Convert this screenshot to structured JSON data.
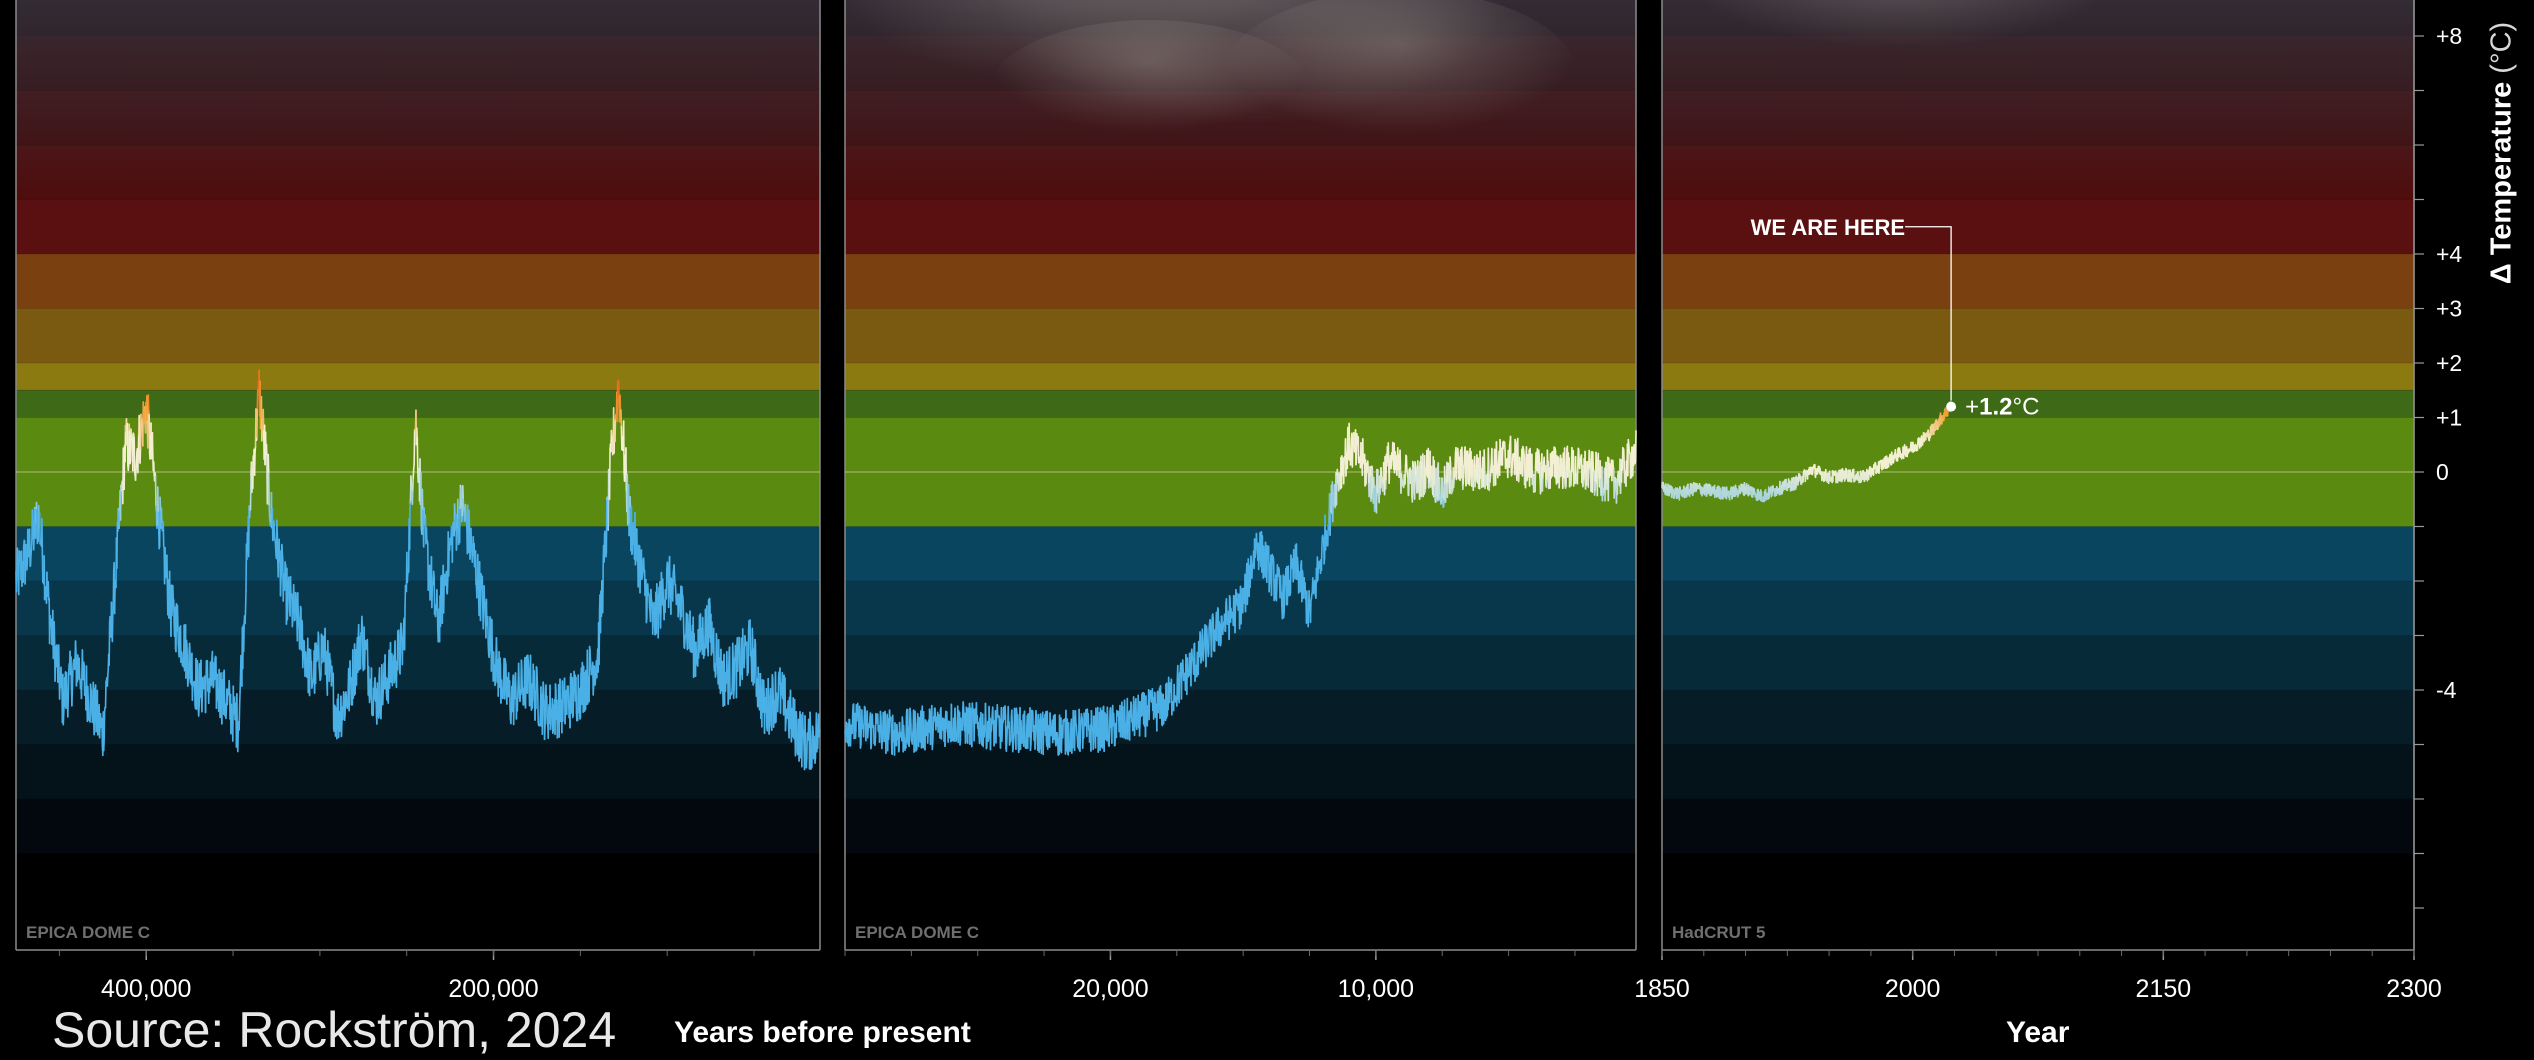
{
  "source": "Source: Rockström, 2024",
  "colors": {
    "cold_ice": "#4ab0e6",
    "neutral": "#f2efd2",
    "warm": "#f0a030",
    "hot": "#e8641e",
    "band_green": "#5a8a10",
    "band_yellow": "#8a7a10",
    "band_orange": "#8a4a10",
    "band_red": "#6a1010",
    "band_blue": "#0a4560"
  },
  "chart_data": {
    "type": "line",
    "title": "",
    "ylabel": "Δ Temperature",
    "ylabel_unit": "(°C)",
    "ylim": [
      -8.5,
      9
    ],
    "y_ticks": [
      -4,
      0,
      1,
      2,
      3,
      4,
      8
    ],
    "y_tick_labels": [
      "-4",
      "0",
      "+1",
      "+2",
      "+3",
      "+4",
      "+8"
    ],
    "bands": [
      {
        "from": -8.5,
        "to": -7,
        "color": "#000000"
      },
      {
        "from": -7,
        "to": -6,
        "color": "#02080d"
      },
      {
        "from": -6,
        "to": -5,
        "color": "#041219"
      },
      {
        "from": -5,
        "to": -4,
        "color": "#061d28"
      },
      {
        "from": -4,
        "to": -3,
        "color": "#072a39"
      },
      {
        "from": -3,
        "to": -2,
        "color": "#08364a"
      },
      {
        "from": -2,
        "to": -1,
        "color": "#0a4560"
      },
      {
        "from": -1,
        "to": 1,
        "color": "#5a8a10"
      },
      {
        "from": 1,
        "to": 1.5,
        "color": "#3e6a18"
      },
      {
        "from": 1.5,
        "to": 2,
        "color": "#8a7a10"
      },
      {
        "from": 2,
        "to": 3,
        "color": "#7a5a10"
      },
      {
        "from": 3,
        "to": 4,
        "color": "#7a4010"
      },
      {
        "from": 4,
        "to": 5,
        "color": "#5a1010"
      },
      {
        "from": 5,
        "to": 6,
        "color": "#4e0d0d"
      },
      {
        "from": 6,
        "to": 7,
        "color": "#420b0b"
      },
      {
        "from": 7,
        "to": 8,
        "color": "#360909"
      },
      {
        "from": 8,
        "to": 9,
        "color": "#2a0707"
      }
    ],
    "panels": [
      {
        "dataset": "EPICA DOME C",
        "xlabel": "",
        "x_axis": "years before present",
        "xlim": [
          475000,
          12000
        ],
        "x_ticks": [
          400000,
          200000
        ],
        "x_tick_labels": [
          "400,000",
          "200,000"
        ],
        "series": [
          {
            "values": [
              [
                475000,
                -2.0
              ],
              [
                468000,
                -1.5
              ],
              [
                462000,
                -0.8
              ],
              [
                455000,
                -2.8
              ],
              [
                448000,
                -4.2
              ],
              [
                440000,
                -3.5
              ],
              [
                432000,
                -4.2
              ],
              [
                425000,
                -4.8
              ],
              [
                418000,
                -2.0
              ],
              [
                412000,
                0.5
              ],
              [
                406000,
                0.3
              ],
              [
                400000,
                1.2
              ],
              [
                394000,
                -0.5
              ],
              [
                386000,
                -2.5
              ],
              [
                378000,
                -3.2
              ],
              [
                370000,
                -4.0
              ],
              [
                362000,
                -3.8
              ],
              [
                354000,
                -4.2
              ],
              [
                347000,
                -4.6
              ],
              [
                340000,
                -0.5
              ],
              [
                335000,
                1.5
              ],
              [
                328000,
                -0.8
              ],
              [
                320000,
                -2.2
              ],
              [
                312000,
                -2.8
              ],
              [
                305000,
                -3.8
              ],
              [
                298000,
                -3.2
              ],
              [
                290000,
                -4.5
              ],
              [
                283000,
                -4.0
              ],
              [
                276000,
                -3.0
              ],
              [
                268000,
                -4.2
              ],
              [
                252000,
                -3.2
              ],
              [
                245000,
                1.0
              ],
              [
                240000,
                -1.2
              ],
              [
                232000,
                -2.8
              ],
              [
                224000,
                -1.2
              ],
              [
                218000,
                -0.6
              ],
              [
                212000,
                -1.5
              ],
              [
                205000,
                -2.6
              ],
              [
                198000,
                -3.6
              ],
              [
                190000,
                -4.2
              ],
              [
                180000,
                -3.8
              ],
              [
                170000,
                -4.4
              ],
              [
                160000,
                -4.3
              ],
              [
                150000,
                -4.0
              ],
              [
                140000,
                -3.4
              ],
              [
                132000,
                0.3
              ],
              [
                128000,
                1.6
              ],
              [
                122000,
                -0.8
              ],
              [
                115000,
                -1.8
              ],
              [
                108000,
                -2.8
              ],
              [
                100000,
                -2.0
              ],
              [
                92000,
                -2.5
              ],
              [
                84000,
                -3.3
              ],
              [
                76000,
                -2.8
              ],
              [
                68000,
                -3.8
              ],
              [
                60000,
                -3.6
              ],
              [
                52000,
                -3.2
              ],
              [
                44000,
                -4.4
              ],
              [
                36000,
                -4.0
              ],
              [
                28000,
                -4.6
              ],
              [
                20000,
                -5.0
              ],
              [
                12000,
                -4.8
              ]
            ]
          }
        ]
      },
      {
        "dataset": "EPICA DOME C",
        "xlabel": "Years before present",
        "x_axis": "years before present",
        "xlim": [
          30000,
          200
        ],
        "x_ticks": [
          20000,
          10000
        ],
        "x_tick_labels": [
          "20,000",
          "10,000"
        ],
        "series": [
          {
            "values": [
              [
                30000,
                -4.6
              ],
              [
                28000,
                -4.8
              ],
              [
                26000,
                -4.6
              ],
              [
                24000,
                -4.7
              ],
              [
                22000,
                -4.8
              ],
              [
                20000,
                -4.7
              ],
              [
                19000,
                -4.5
              ],
              [
                18000,
                -4.3
              ],
              [
                17000,
                -3.6
              ],
              [
                16000,
                -2.9
              ],
              [
                15000,
                -2.4
              ],
              [
                14500,
                -1.3
              ],
              [
                14000,
                -1.8
              ],
              [
                13500,
                -2.3
              ],
              [
                13000,
                -1.7
              ],
              [
                12500,
                -2.6
              ],
              [
                12000,
                -1.4
              ],
              [
                11500,
                -0.2
              ],
              [
                11000,
                0.5
              ],
              [
                10500,
                0.2
              ],
              [
                10000,
                -0.4
              ],
              [
                9500,
                0.2
              ],
              [
                9000,
                0.0
              ],
              [
                8500,
                -0.2
              ],
              [
                8000,
                0.1
              ],
              [
                7500,
                -0.4
              ],
              [
                7000,
                0.1
              ],
              [
                6000,
                0.0
              ],
              [
                5000,
                0.3
              ],
              [
                4000,
                0.0
              ],
              [
                3000,
                0.1
              ],
              [
                2000,
                0.0
              ],
              [
                1000,
                -0.2
              ],
              [
                200,
                0.4
              ]
            ]
          }
        ]
      },
      {
        "dataset": "HadCRUT 5",
        "xlabel": "Year",
        "x_axis": "year",
        "xlim": [
          1850,
          2300
        ],
        "x_ticks": [
          1850,
          2000,
          2150,
          2300
        ],
        "x_tick_labels": [
          "1850",
          "2000",
          "2150",
          "2300"
        ],
        "series": [
          {
            "values": [
              [
                1850,
                -0.3
              ],
              [
                1860,
                -0.4
              ],
              [
                1870,
                -0.3
              ],
              [
                1880,
                -0.35
              ],
              [
                1890,
                -0.4
              ],
              [
                1900,
                -0.3
              ],
              [
                1910,
                -0.45
              ],
              [
                1920,
                -0.3
              ],
              [
                1930,
                -0.2
              ],
              [
                1940,
                0.05
              ],
              [
                1950,
                -0.1
              ],
              [
                1960,
                -0.05
              ],
              [
                1970,
                -0.1
              ],
              [
                1980,
                0.1
              ],
              [
                1990,
                0.3
              ],
              [
                2000,
                0.45
              ],
              [
                2010,
                0.7
              ],
              [
                2015,
                0.9
              ],
              [
                2020,
                1.1
              ],
              [
                2023,
                1.2
              ]
            ]
          }
        ],
        "annotation": {
          "label": "WE ARE HERE",
          "value_prefix": "+",
          "value": "1.2",
          "unit": "°C",
          "x": 2023,
          "y": 1.2
        }
      }
    ]
  }
}
